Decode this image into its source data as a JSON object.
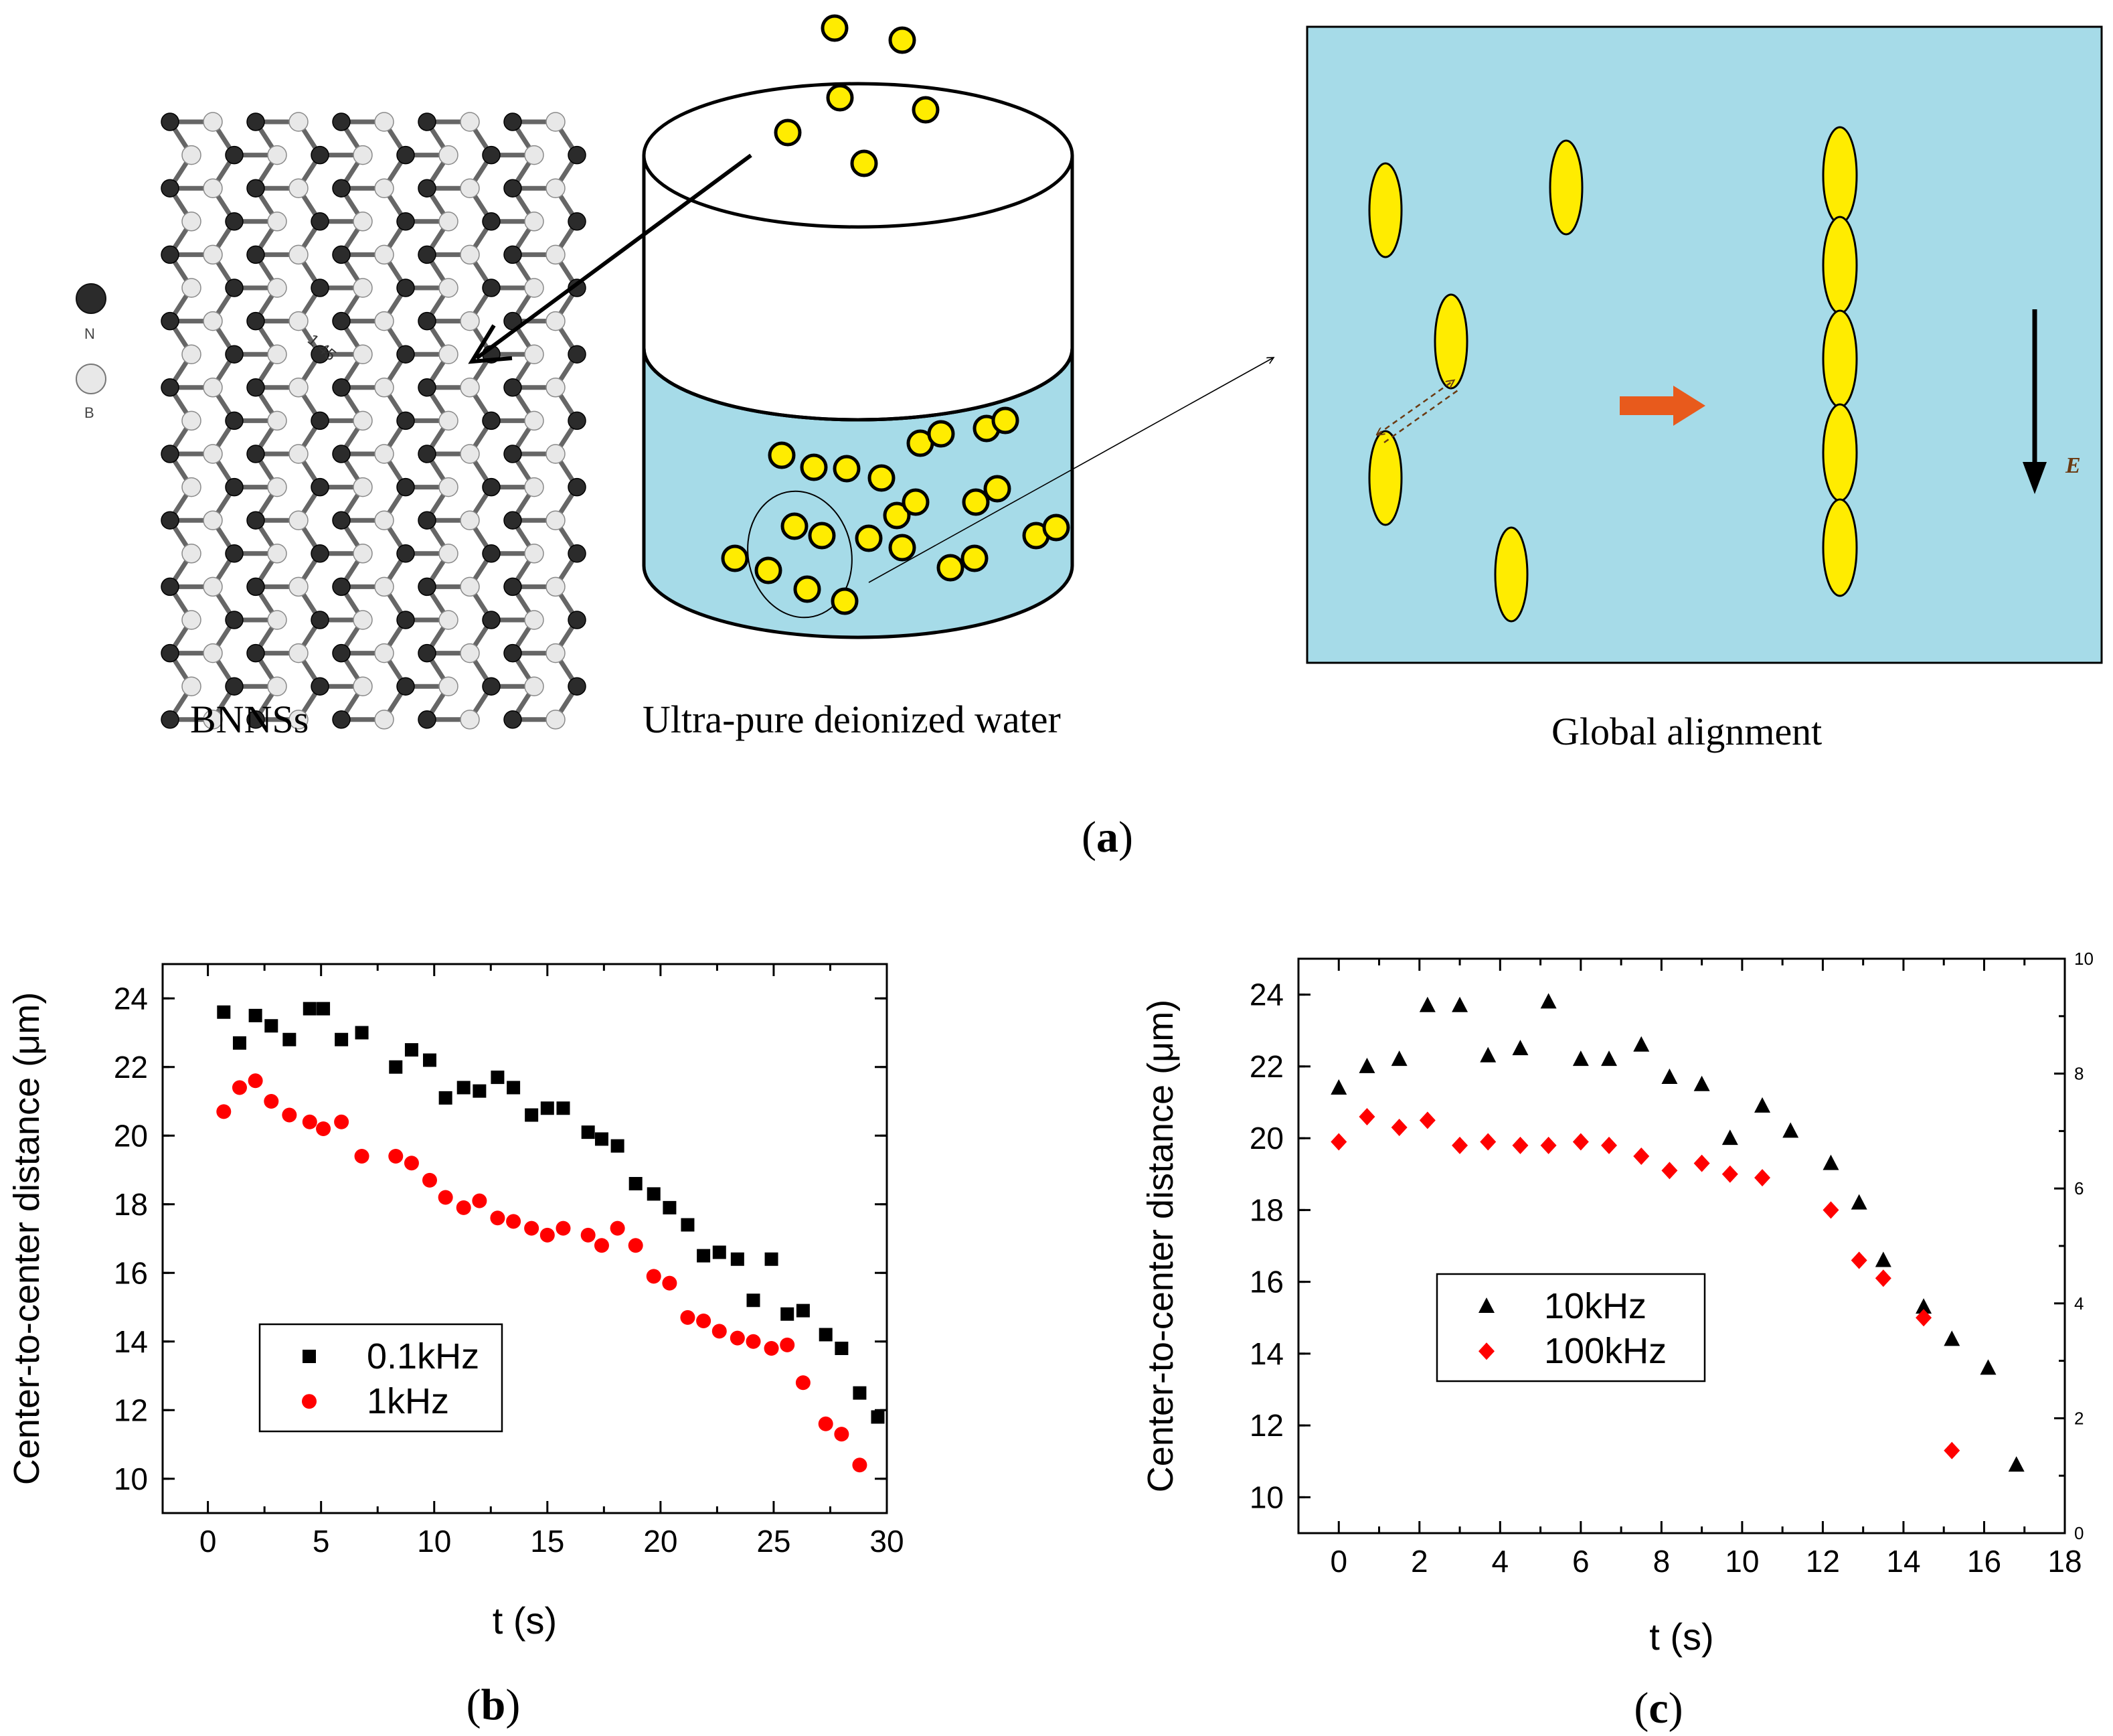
{
  "panel_a": {
    "legend_n": "N",
    "legend_b": "B",
    "bond_length": "1.45",
    "field_symbol": "E",
    "caption_bnns": "BNNSs",
    "caption_water": "Ultra-pure deionized water",
    "caption_alignment": "Global alignment",
    "label_open": "(",
    "label_letter": "a",
    "label_close": ")",
    "colors": {
      "water": "#a6dbe8",
      "particle": "#ffec00",
      "arrow": "#e85a1c"
    }
  },
  "chart_data": [
    {
      "id": "b",
      "type": "scatter",
      "panel_label": {
        "open": "(",
        "letter": "b",
        "close": ")"
      },
      "xlabel": "t (s)",
      "ylabel": "Center-to-center distance (μm)",
      "xlim": [
        -2,
        30
      ],
      "ylim": [
        9,
        25
      ],
      "xticks": [
        0,
        5,
        10,
        15,
        20,
        25,
        30
      ],
      "yticks": [
        10,
        12,
        14,
        16,
        18,
        20,
        22,
        24
      ],
      "legend_position": "lower-left",
      "series": [
        {
          "name": "0.1kHz",
          "marker": "square",
          "color": "#000000",
          "points": [
            [
              0.7,
              23.6
            ],
            [
              1.4,
              22.7
            ],
            [
              2.1,
              23.5
            ],
            [
              2.8,
              23.2
            ],
            [
              3.6,
              22.8
            ],
            [
              4.5,
              23.7
            ],
            [
              5.1,
              23.7
            ],
            [
              5.9,
              22.8
            ],
            [
              6.8,
              23.0
            ],
            [
              8.3,
              22.0
            ],
            [
              9.0,
              22.5
            ],
            [
              9.8,
              22.2
            ],
            [
              10.5,
              21.1
            ],
            [
              11.3,
              21.4
            ],
            [
              12.0,
              21.3
            ],
            [
              12.8,
              21.7
            ],
            [
              13.5,
              21.4
            ],
            [
              14.3,
              20.6
            ],
            [
              15.0,
              20.8
            ],
            [
              15.7,
              20.8
            ],
            [
              16.8,
              20.1
            ],
            [
              17.4,
              19.9
            ],
            [
              18.1,
              19.7
            ],
            [
              18.9,
              18.6
            ],
            [
              19.7,
              18.3
            ],
            [
              20.4,
              17.9
            ],
            [
              21.2,
              17.4
            ],
            [
              21.9,
              16.5
            ],
            [
              22.6,
              16.6
            ],
            [
              23.4,
              16.4
            ],
            [
              24.1,
              15.2
            ],
            [
              24.9,
              16.4
            ],
            [
              25.6,
              14.8
            ],
            [
              26.3,
              14.9
            ],
            [
              27.3,
              14.2
            ],
            [
              28.0,
              13.8
            ],
            [
              28.8,
              12.5
            ],
            [
              29.6,
              11.8
            ]
          ]
        },
        {
          "name": "1kHz",
          "marker": "circle",
          "color": "#ff0000",
          "points": [
            [
              0.7,
              20.7
            ],
            [
              1.4,
              21.4
            ],
            [
              2.1,
              21.6
            ],
            [
              2.8,
              21.0
            ],
            [
              3.6,
              20.6
            ],
            [
              4.5,
              20.4
            ],
            [
              5.1,
              20.2
            ],
            [
              5.9,
              20.4
            ],
            [
              6.8,
              19.4
            ],
            [
              8.3,
              19.4
            ],
            [
              9.0,
              19.2
            ],
            [
              9.8,
              18.7
            ],
            [
              10.5,
              18.2
            ],
            [
              11.3,
              17.9
            ],
            [
              12.0,
              18.1
            ],
            [
              12.8,
              17.6
            ],
            [
              13.5,
              17.5
            ],
            [
              14.3,
              17.3
            ],
            [
              15.0,
              17.1
            ],
            [
              15.7,
              17.3
            ],
            [
              16.8,
              17.1
            ],
            [
              17.4,
              16.8
            ],
            [
              18.1,
              17.3
            ],
            [
              18.9,
              16.8
            ],
            [
              19.7,
              15.9
            ],
            [
              20.4,
              15.7
            ],
            [
              21.2,
              14.7
            ],
            [
              21.9,
              14.6
            ],
            [
              22.6,
              14.3
            ],
            [
              23.4,
              14.1
            ],
            [
              24.1,
              14.0
            ],
            [
              24.9,
              13.8
            ],
            [
              25.6,
              13.9
            ],
            [
              26.3,
              12.8
            ],
            [
              27.3,
              11.6
            ],
            [
              28.0,
              11.3
            ],
            [
              28.8,
              10.4
            ]
          ]
        }
      ]
    },
    {
      "id": "c",
      "type": "scatter",
      "panel_label": {
        "open": "(",
        "letter": "c",
        "close": ")"
      },
      "xlabel": "t (s)",
      "ylabel": "Center-to-center distance (μm)",
      "xlim": [
        -1,
        18
      ],
      "ylim": [
        9,
        25
      ],
      "xticks": [
        0,
        2,
        4,
        6,
        8,
        10,
        12,
        14,
        16,
        18
      ],
      "yticks": [
        10,
        12,
        14,
        16,
        18,
        20,
        22,
        24
      ],
      "y2lim": [
        0,
        10
      ],
      "y2ticks": [
        0,
        2,
        4,
        6,
        8,
        10
      ],
      "legend_position": "center-left",
      "series": [
        {
          "name": "10kHz",
          "marker": "triangle",
          "color": "#000000",
          "points": [
            [
              0.0,
              21.4
            ],
            [
              0.7,
              22.0
            ],
            [
              1.5,
              22.2
            ],
            [
              2.2,
              23.7
            ],
            [
              3.0,
              23.7
            ],
            [
              3.7,
              22.3
            ],
            [
              4.5,
              22.5
            ],
            [
              5.2,
              23.8
            ],
            [
              6.0,
              22.2
            ],
            [
              6.7,
              22.2
            ],
            [
              7.5,
              22.6
            ],
            [
              8.2,
              21.7
            ],
            [
              9.0,
              21.5
            ],
            [
              9.7,
              20.0
            ],
            [
              10.5,
              20.9
            ],
            [
              11.2,
              20.2
            ],
            [
              12.2,
              19.3
            ],
            [
              12.9,
              18.2
            ],
            [
              13.5,
              16.6
            ],
            [
              14.5,
              15.3
            ],
            [
              15.2,
              14.4
            ],
            [
              16.1,
              13.6
            ],
            [
              16.8,
              10.9
            ]
          ]
        },
        {
          "name": "100kHz",
          "marker": "diamond",
          "color": "#ff0000",
          "points": [
            [
              0.0,
              19.9
            ],
            [
              0.7,
              20.6
            ],
            [
              1.5,
              20.3
            ],
            [
              2.2,
              20.5
            ],
            [
              3.0,
              19.8
            ],
            [
              3.7,
              19.9
            ],
            [
              4.5,
              19.8
            ],
            [
              5.2,
              19.8
            ],
            [
              6.0,
              19.9
            ],
            [
              6.7,
              19.8
            ],
            [
              7.5,
              19.5
            ],
            [
              8.2,
              19.1
            ],
            [
              9.0,
              19.3
            ],
            [
              9.7,
              19.0
            ],
            [
              10.5,
              18.9
            ],
            [
              12.2,
              18.0
            ],
            [
              12.9,
              16.6
            ],
            [
              13.5,
              16.1
            ],
            [
              14.5,
              15.0
            ],
            [
              15.2,
              11.3
            ]
          ]
        }
      ]
    }
  ]
}
